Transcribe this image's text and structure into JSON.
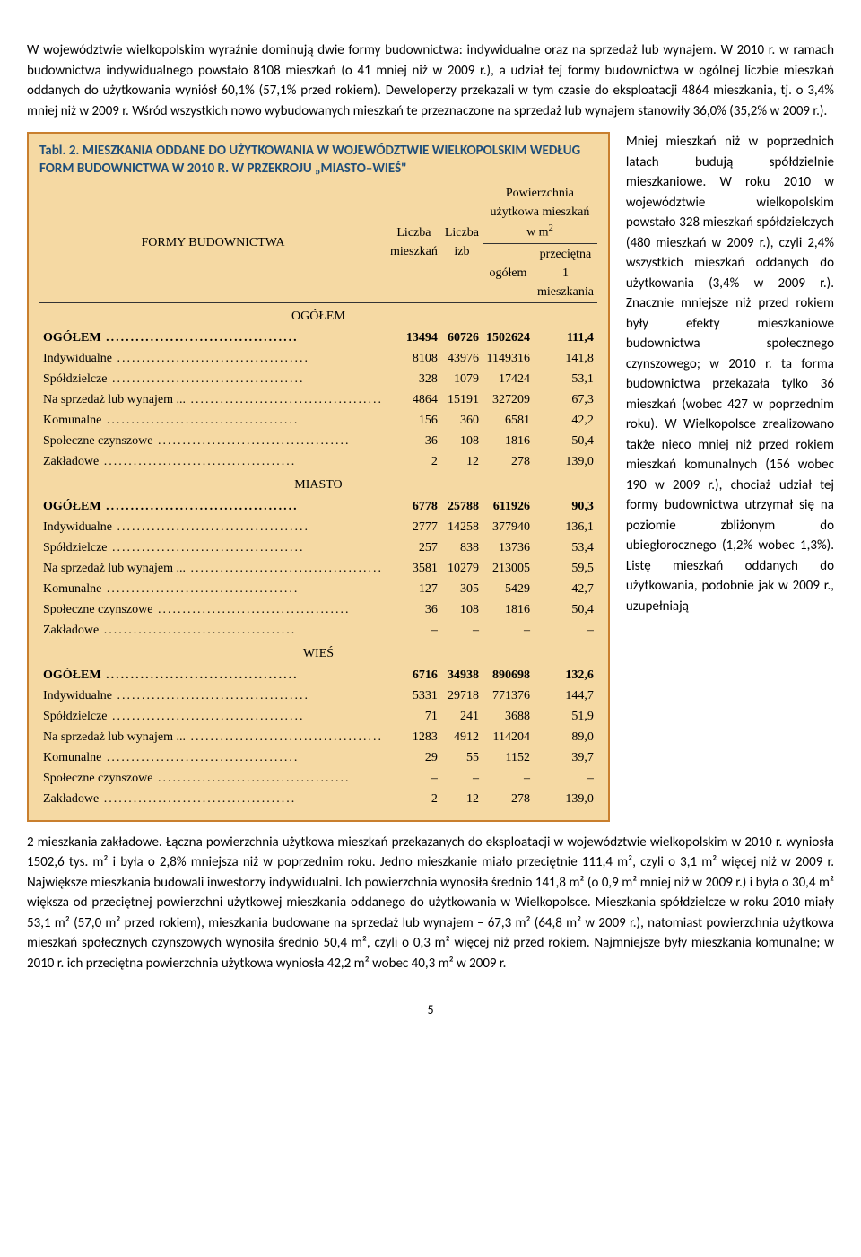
{
  "intro": "W województwie wielkopolskim wyraźnie dominują dwie formy budownictwa: indywidualne oraz na sprzedaż lub wynajem. W 2010 r. w ramach budownictwa indywidualnego powstało 8108 mieszkań (o 41 mniej niż w 2009 r.), a udział tej formy budownictwa w ogólnej liczbie mieszkań oddanych do użytkowania wyniósł 60,1% (57,1% przed rokiem). Deweloperzy przekazali w tym czasie do eksploatacji 4864 mieszkania, tj. o 3,4% mniej niż w 2009 r. Wśród wszystkich nowo wybudowanych mieszkań te przeznaczone na sprzedaż lub wynajem stanowiły 36,0% (35,2% w 2009 r.).",
  "table": {
    "caption": "Tabl. 2. MIESZKANIA ODDANE DO UŻYTKOWANIA W WOJEWÓDZTWIE WIELKOPOLSKIM WEDŁUG FORM BUDOWNICTWA W 2010 R. W PRZEKROJU „MIASTO–WIEŚ\"",
    "col_headers": {
      "c1": "FORMY BUDOWNICTWA",
      "c2": "Liczba mieszkań",
      "c3": "Liczba izb",
      "c4_top": "Powierzchnia użytkowa mieszkań w m",
      "c4a": "ogółem",
      "c4b": "przeciętna 1 mieszkania"
    },
    "sections": [
      {
        "name": "OGÓŁEM",
        "rows": [
          {
            "label": "OGÓŁEM",
            "bold": true,
            "v": [
              "13494",
              "60726",
              "1502624",
              "111,4"
            ]
          },
          {
            "label": "Indywidualne",
            "v": [
              "8108",
              "43976",
              "1149316",
              "141,8"
            ]
          },
          {
            "label": "Spółdzielcze",
            "v": [
              "328",
              "1079",
              "17424",
              "53,1"
            ]
          },
          {
            "label": "Na sprzedaż lub wynajem ...",
            "v": [
              "4864",
              "15191",
              "327209",
              "67,3"
            ]
          },
          {
            "label": "Komunalne",
            "v": [
              "156",
              "360",
              "6581",
              "42,2"
            ]
          },
          {
            "label": "Społeczne czynszowe",
            "v": [
              "36",
              "108",
              "1816",
              "50,4"
            ]
          },
          {
            "label": "Zakładowe",
            "v": [
              "2",
              "12",
              "278",
              "139,0"
            ]
          }
        ]
      },
      {
        "name": "MIASTO",
        "rows": [
          {
            "label": "OGÓŁEM",
            "bold": true,
            "v": [
              "6778",
              "25788",
              "611926",
              "90,3"
            ]
          },
          {
            "label": "Indywidualne",
            "v": [
              "2777",
              "14258",
              "377940",
              "136,1"
            ]
          },
          {
            "label": "Spółdzielcze",
            "v": [
              "257",
              "838",
              "13736",
              "53,4"
            ]
          },
          {
            "label": "Na sprzedaż lub wynajem ...",
            "v": [
              "3581",
              "10279",
              "213005",
              "59,5"
            ]
          },
          {
            "label": "Komunalne",
            "v": [
              "127",
              "305",
              "5429",
              "42,7"
            ]
          },
          {
            "label": "Społeczne czynszowe",
            "v": [
              "36",
              "108",
              "1816",
              "50,4"
            ]
          },
          {
            "label": "Zakładowe",
            "v": [
              "–",
              "–",
              "–",
              "–"
            ]
          }
        ]
      },
      {
        "name": "WIEŚ",
        "rows": [
          {
            "label": "OGÓŁEM",
            "bold": true,
            "v": [
              "6716",
              "34938",
              "890698",
              "132,6"
            ]
          },
          {
            "label": "Indywidualne",
            "v": [
              "5331",
              "29718",
              "771376",
              "144,7"
            ]
          },
          {
            "label": "Spółdzielcze",
            "v": [
              "71",
              "241",
              "3688",
              "51,9"
            ]
          },
          {
            "label": "Na sprzedaż lub wynajem ...",
            "v": [
              "1283",
              "4912",
              "114204",
              "89,0"
            ]
          },
          {
            "label": "Komunalne",
            "v": [
              "29",
              "55",
              "1152",
              "39,7"
            ]
          },
          {
            "label": "Społeczne czynszowe",
            "v": [
              "–",
              "–",
              "–",
              "–"
            ]
          },
          {
            "label": "Zakładowe",
            "v": [
              "2",
              "12",
              "278",
              "139,0"
            ]
          }
        ]
      }
    ],
    "colors": {
      "background": "#f5d9a3",
      "border": "#c97f2e",
      "caption": "#1f4e79"
    }
  },
  "side_text": "Mniej mieszkań niż w poprzednich latach budują spółdzielnie mieszkaniowe. W roku 2010 w województwie wielkopolskim powstało 328 mieszkań spółdzielczych (480 mieszkań w 2009 r.), czyli 2,4% wszystkich mieszkań oddanych do użytkowania (3,4% w 2009 r.). Znacznie mniejsze niż przed rokiem były efekty mieszkaniowe budownictwa społecznego czynszowego; w 2010 r. ta forma budownictwa przekazała tylko 36 mieszkań (wobec 427 w poprzednim roku). W Wielkopolsce zrealizowano także nieco mniej niż przed rokiem mieszkań komunalnych (156 wobec 190 w 2009 r.), chociaż udział tej formy budownictwa utrzymał się na poziomie zbliżonym do ubiegłorocznego (1,2% wobec 1,3%). Listę mieszkań oddanych do użytkowania, podobnie jak w 2009 r., uzupełniają",
  "bottom_text": "2 mieszkania zakładowe. Łączna powierzchnia użytkowa mieszkań przekazanych do eksploatacji w województwie wielkopolskim w 2010 r. wyniosła 1502,6 tys. m² i była o 2,8% mniejsza niż w poprzednim roku. Jedno mieszkanie miało przeciętnie 111,4 m², czyli o 3,1 m² więcej niż w 2009 r. Największe mieszkania budowali inwestorzy indywidualni. Ich powierzchnia wynosiła średnio 141,8 m² (o 0,9 m² mniej niż w 2009 r.) i była o 30,4 m² większa od przeciętnej powierzchni użytkowej mieszkania oddanego do użytkowania w Wielkopolsce. Mieszkania spółdzielcze w roku 2010 miały 53,1 m² (57,0 m² przed rokiem), mieszkania budowane na sprzedaż lub wynajem – 67,3 m² (64,8 m² w 2009 r.), natomiast powierzchnia użytkowa mieszkań społecznych czynszowych wynosiła średnio 50,4 m², czyli o 0,3 m² więcej niż przed rokiem. Najmniejsze były mieszkania komunalne; w 2010 r. ich przeciętna powierzchnia użytkowa wyniosła 42,2 m² wobec 40,3 m² w 2009 r.",
  "page_number": "5"
}
